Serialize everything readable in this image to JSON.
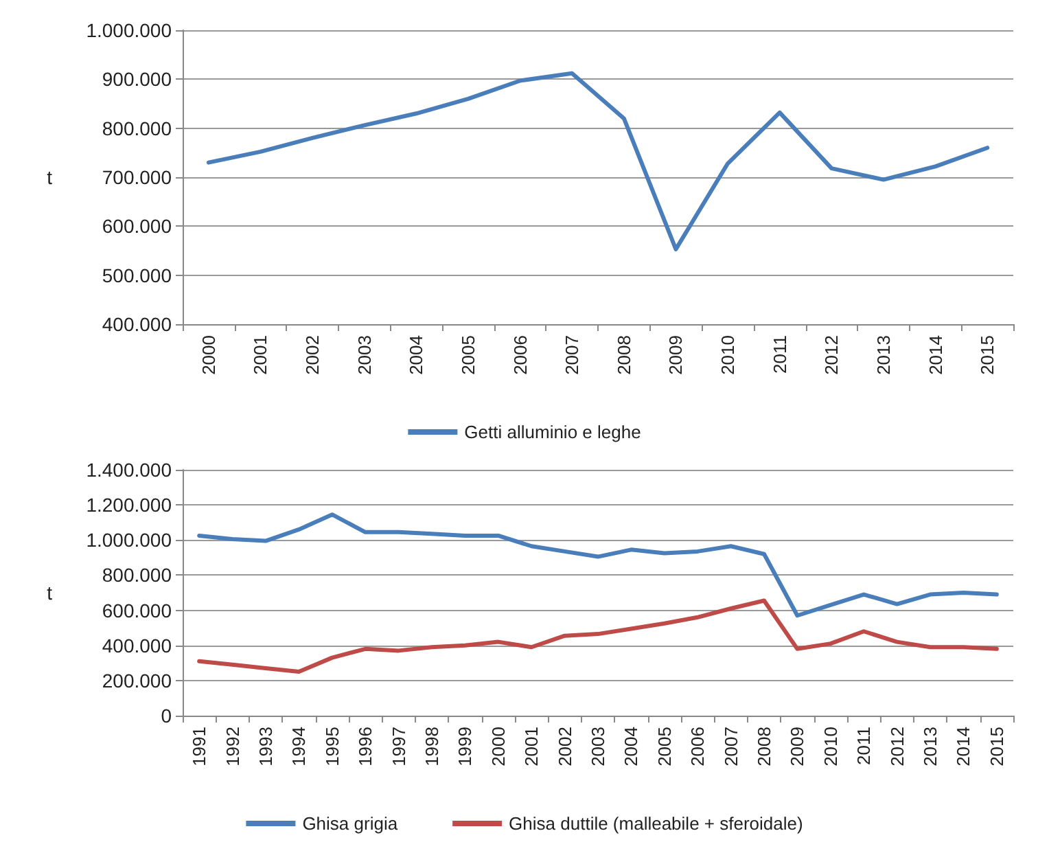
{
  "chart_data": [
    {
      "type": "line",
      "ylabel": "t",
      "categories": [
        "2000",
        "2001",
        "2002",
        "2003",
        "2004",
        "2005",
        "2006",
        "2007",
        "2008",
        "2009",
        "2010",
        "2011",
        "2012",
        "2013",
        "2014",
        "2015"
      ],
      "series": [
        {
          "name": "Getti alluminio e leghe",
          "color": "#4a7ebb",
          "values": [
            730000,
            752000,
            780000,
            806000,
            830000,
            860000,
            897000,
            912000,
            820000,
            553000,
            728000,
            832000,
            718000,
            695000,
            722000,
            760000
          ]
        }
      ],
      "ylim": [
        400000,
        1000000
      ],
      "yticks": [
        {
          "value": 400000,
          "label": "400.000"
        },
        {
          "value": 500000,
          "label": "500.000"
        },
        {
          "value": 600000,
          "label": "600.000"
        },
        {
          "value": 700000,
          "label": "700.000"
        },
        {
          "value": 800000,
          "label": "800.000"
        },
        {
          "value": 900000,
          "label": "900.000"
        },
        {
          "value": 1000000,
          "label": "1.000.000"
        }
      ],
      "grid": "y",
      "legend": "bottom",
      "marker": "none",
      "line_style": "solid"
    },
    {
      "type": "line",
      "ylabel": "t",
      "categories": [
        "1991",
        "1992",
        "1993",
        "1994",
        "1995",
        "1996",
        "1997",
        "1998",
        "1999",
        "2000",
        "2001",
        "2002",
        "2003",
        "2004",
        "2005",
        "2006",
        "2007",
        "2008",
        "2009",
        "2010",
        "2011",
        "2012",
        "2013",
        "2014",
        "2015"
      ],
      "series": [
        {
          "name": "Ghisa grigia",
          "color": "#4a7ebb",
          "values": [
            1025000,
            1005000,
            995000,
            1060000,
            1145000,
            1045000,
            1045000,
            1035000,
            1025000,
            1025000,
            965000,
            935000,
            905000,
            945000,
            925000,
            935000,
            965000,
            920000,
            570000,
            630000,
            690000,
            635000,
            690000,
            700000,
            690000
          ]
        },
        {
          "name": "Ghisa duttile (malleabile + sferoidale)",
          "color": "#be4b48",
          "values": [
            310000,
            290000,
            270000,
            250000,
            330000,
            380000,
            370000,
            390000,
            400000,
            420000,
            390000,
            455000,
            465000,
            495000,
            525000,
            560000,
            610000,
            655000,
            380000,
            410000,
            480000,
            420000,
            390000,
            390000,
            380000
          ]
        }
      ],
      "ylim": [
        0,
        1400000
      ],
      "yticks": [
        0,
        {
          "value": 200000,
          "label": "200.000"
        },
        {
          "value": 400000,
          "label": "400.000"
        },
        {
          "value": 600000,
          "label": "600.000"
        },
        {
          "value": 800000,
          "label": "800.000"
        },
        {
          "value": 1000000,
          "label": "1.000.000"
        },
        {
          "value": 1200000,
          "label": "1.200.000"
        },
        {
          "value": 1400000,
          "label": "1.400.000"
        }
      ],
      "grid": "y",
      "legend": "bottom",
      "marker": "none",
      "line_style": "solid"
    }
  ]
}
